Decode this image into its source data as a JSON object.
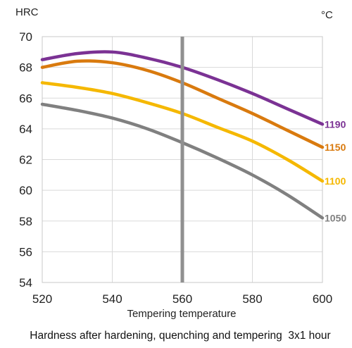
{
  "chart_data": {
    "type": "line",
    "ylabel": "HRC",
    "unit_label": "°C",
    "xlabel": "Tempering temperature",
    "caption": "Hardness after hardening, quenching and tempering  3x1 hour",
    "xlim": [
      520,
      600
    ],
    "ylim": [
      54,
      70
    ],
    "x_ticks": [
      520,
      540,
      560,
      580,
      600
    ],
    "y_ticks": [
      54,
      56,
      58,
      60,
      62,
      64,
      66,
      68,
      70
    ],
    "grid": true,
    "marker_line_x": 560,
    "marker_line_color": "#909090",
    "series": [
      {
        "name": "1190",
        "color": "#7B3294",
        "x": [
          520,
          530,
          540,
          550,
          560,
          570,
          580,
          590,
          600
        ],
        "y": [
          68.5,
          68.9,
          69.0,
          68.6,
          68.0,
          67.2,
          66.3,
          65.3,
          64.3
        ]
      },
      {
        "name": "1150",
        "color": "#D97A0E",
        "x": [
          520,
          530,
          540,
          550,
          560,
          570,
          580,
          590,
          600
        ],
        "y": [
          68.0,
          68.4,
          68.3,
          67.8,
          67.0,
          66.0,
          65.0,
          63.9,
          62.8
        ]
      },
      {
        "name": "1100",
        "color": "#F5B800",
        "x": [
          520,
          530,
          540,
          550,
          560,
          570,
          580,
          590,
          600
        ],
        "y": [
          67.0,
          66.7,
          66.3,
          65.7,
          65.0,
          64.1,
          63.2,
          62.0,
          60.6
        ]
      },
      {
        "name": "1050",
        "color": "#808080",
        "x": [
          520,
          530,
          540,
          550,
          560,
          570,
          580,
          590,
          600
        ],
        "y": [
          65.6,
          65.2,
          64.7,
          64.0,
          63.1,
          62.1,
          61.0,
          59.7,
          58.2
        ]
      }
    ]
  }
}
